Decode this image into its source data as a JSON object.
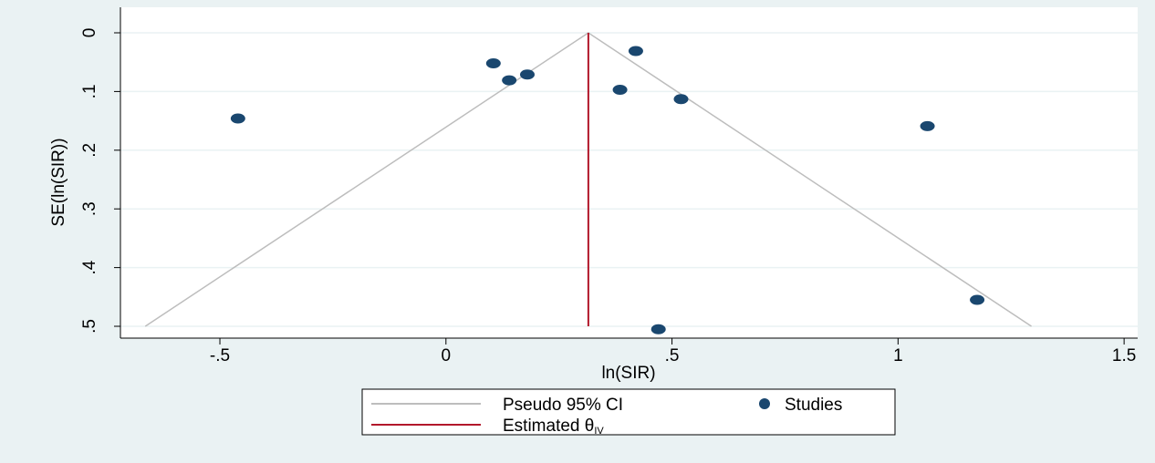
{
  "chart_data": {
    "type": "scatter",
    "title": "",
    "xlabel": "ln(SIR)",
    "ylabel": "SE(ln(SIR))",
    "xlim": [
      -0.72,
      1.53
    ],
    "ylim": [
      0,
      0.52
    ],
    "y_reversed": true,
    "x_ticks": [
      -0.5,
      0,
      0.5,
      1,
      1.5
    ],
    "x_tick_labels": [
      "-.5",
      "0",
      ".5",
      "1",
      "1.5"
    ],
    "y_ticks": [
      0,
      0.1,
      0.2,
      0.3,
      0.4,
      0.5
    ],
    "y_tick_labels": [
      "0",
      ".1",
      ".2",
      ".3",
      ".4",
      ".5"
    ],
    "grid": true,
    "legend_position": "bottom",
    "series": [
      {
        "name": "Studies",
        "kind": "points",
        "color": "#1a476f",
        "points": [
          {
            "x": -0.46,
            "y": 0.146
          },
          {
            "x": 0.105,
            "y": 0.052
          },
          {
            "x": 0.14,
            "y": 0.081
          },
          {
            "x": 0.18,
            "y": 0.071
          },
          {
            "x": 0.385,
            "y": 0.097
          },
          {
            "x": 0.42,
            "y": 0.031
          },
          {
            "x": 0.52,
            "y": 0.113
          },
          {
            "x": 1.065,
            "y": 0.159
          },
          {
            "x": 1.175,
            "y": 0.455
          },
          {
            "x": 0.47,
            "y": 0.505
          }
        ]
      },
      {
        "name": "Pseudo 95% CI",
        "kind": "funnel",
        "color": "#bdbdbd",
        "center": 0.315,
        "se_max": 0.5
      },
      {
        "name": "Estimated θIV",
        "kind": "vline",
        "color": "#b2182b",
        "x": 0.315
      }
    ],
    "legend": [
      {
        "label": "Pseudo 95% CI",
        "symbol": "line",
        "color": "#bdbdbd"
      },
      {
        "label": "Studies",
        "symbol": "dot",
        "color": "#1a476f"
      },
      {
        "label": "Estimated θ",
        "sub": "IV",
        "symbol": "line",
        "color": "#b2182b"
      }
    ]
  }
}
